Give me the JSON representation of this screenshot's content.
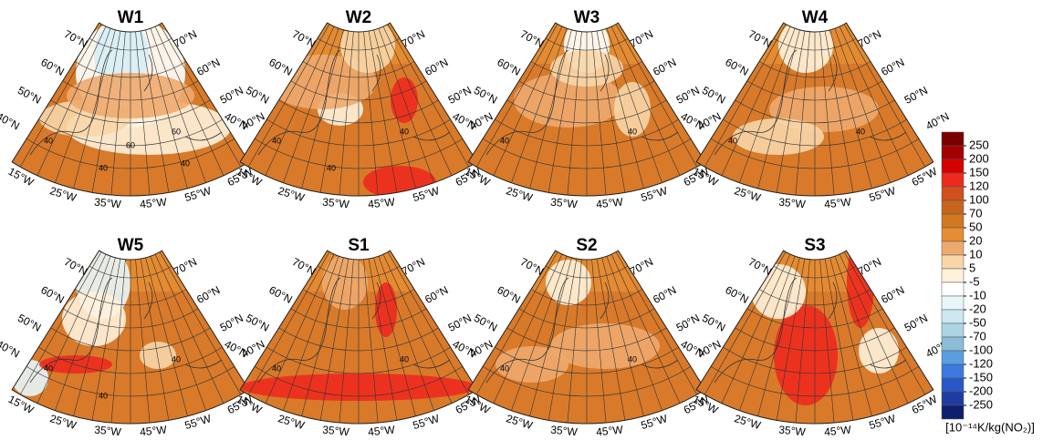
{
  "panels": [
    {
      "title": "W1",
      "contour_labels": [
        40,
        60,
        40,
        60,
        40
      ]
    },
    {
      "title": "W2",
      "contour_labels": [
        40,
        40,
        40
      ]
    },
    {
      "title": "W3",
      "contour_labels": [
        40,
        40
      ]
    },
    {
      "title": "W4",
      "contour_labels": [
        40,
        40
      ]
    },
    {
      "title": "W5",
      "contour_labels": [
        40,
        40,
        40
      ]
    },
    {
      "title": "S1",
      "contour_labels": [
        40,
        40
      ]
    },
    {
      "title": "S2",
      "contour_labels": [
        40,
        40
      ]
    },
    {
      "title": "S3",
      "contour_labels": []
    }
  ],
  "lat_labels": [
    "70°N",
    "60°N",
    "50°N",
    "40°N"
  ],
  "lon_labels": [
    "65°W",
    "55°W",
    "45°W",
    "35°W",
    "25°W",
    "15°W"
  ],
  "colorbar": {
    "levels": [
      250,
      200,
      150,
      120,
      100,
      70,
      50,
      20,
      10,
      5,
      -5,
      -10,
      -20,
      -50,
      -70,
      -100,
      -120,
      -150,
      -200,
      -250
    ],
    "colors": [
      "#7a0000",
      "#a50000",
      "#d40000",
      "#ee2a1e",
      "#d2501e",
      "#c8641e",
      "#d27820",
      "#e68c32",
      "#eeaa6e",
      "#f8d6a8",
      "#fff2dc",
      "#ffffff",
      "#e8f6fa",
      "#cde8f0",
      "#aed4e4",
      "#8cbcd6",
      "#5a9ee0",
      "#3c78e0",
      "#2858c8",
      "#1e3ca0",
      "#101e6e"
    ],
    "unit": "[10⁻¹⁴K/kg(NO₂)]"
  }
}
